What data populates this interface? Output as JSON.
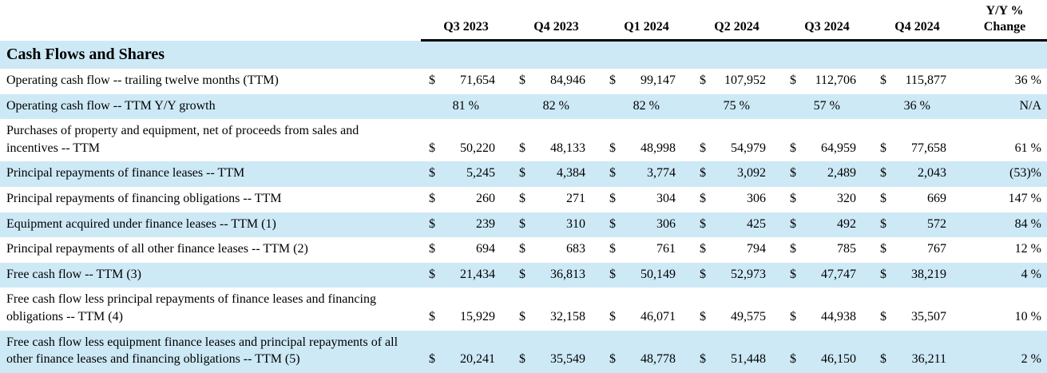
{
  "header": {
    "columns": [
      "Q3 2023",
      "Q4 2023",
      "Q1 2024",
      "Q2 2024",
      "Q3 2024",
      "Q4 2024"
    ],
    "yy_line1": "Y/Y %",
    "yy_line2": "Change"
  },
  "section_title": "Cash Flows and Shares",
  "labels": {
    "currency_symbol": "$"
  },
  "colors": {
    "band_blue": "#cde9f6",
    "header_rule_black": "#000000"
  },
  "rows": [
    {
      "label": "Operating cash flow -- trailing twelve months (TTM)",
      "currency": true,
      "values": [
        "71,654",
        "84,946",
        "99,147",
        "107,952",
        "112,706",
        "115,877"
      ],
      "yy": "36 %"
    },
    {
      "label": "Operating cash flow -- TTM Y/Y growth",
      "currency": false,
      "values": [
        "81 %",
        "82 %",
        "82 %",
        "75 %",
        "57 %",
        "36 %"
      ],
      "yy": "N/A"
    },
    {
      "label": "Purchases of property and equipment, net of proceeds from sales and incentives -- TTM",
      "currency": true,
      "values": [
        "50,220",
        "48,133",
        "48,998",
        "54,979",
        "64,959",
        "77,658"
      ],
      "yy": "61 %"
    },
    {
      "label": "Principal repayments of finance leases -- TTM",
      "currency": true,
      "values": [
        "5,245",
        "4,384",
        "3,774",
        "3,092",
        "2,489",
        "2,043"
      ],
      "yy": "(53)%"
    },
    {
      "label": "Principal repayments of financing obligations -- TTM",
      "currency": true,
      "values": [
        "260",
        "271",
        "304",
        "306",
        "320",
        "669"
      ],
      "yy": "147 %"
    },
    {
      "label": "Equipment acquired under finance leases -- TTM (1)",
      "currency": true,
      "values": [
        "239",
        "310",
        "306",
        "425",
        "492",
        "572"
      ],
      "yy": "84 %"
    },
    {
      "label": "Principal repayments of all other finance leases -- TTM (2)",
      "currency": true,
      "values": [
        "694",
        "683",
        "761",
        "794",
        "785",
        "767"
      ],
      "yy": "12 %"
    },
    {
      "label": "Free cash flow -- TTM (3)",
      "currency": true,
      "values": [
        "21,434",
        "36,813",
        "50,149",
        "52,973",
        "47,747",
        "38,219"
      ],
      "yy": "4 %"
    },
    {
      "label": "Free cash flow less principal repayments of finance leases and financing obligations -- TTM (4)",
      "currency": true,
      "values": [
        "15,929",
        "32,158",
        "46,071",
        "49,575",
        "44,938",
        "35,507"
      ],
      "yy": "10 %"
    },
    {
      "label": "Free cash flow less equipment finance leases and principal repayments of all other finance leases and financing obligations -- TTM (5)",
      "currency": true,
      "values": [
        "20,241",
        "35,549",
        "48,778",
        "51,448",
        "46,150",
        "36,211"
      ],
      "yy": "2 %"
    }
  ]
}
